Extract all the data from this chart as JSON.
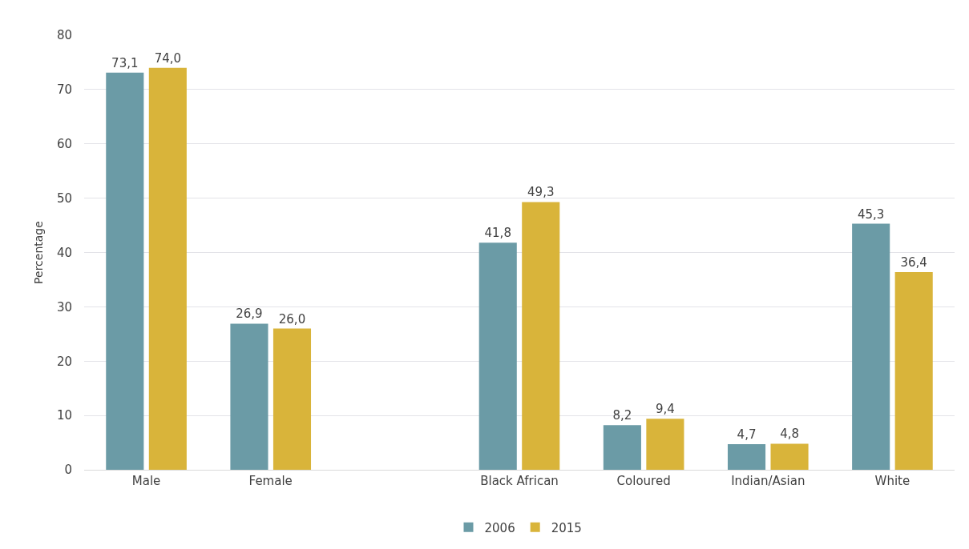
{
  "chart_data": {
    "type": "bar",
    "ylabel": "Percentage",
    "categories": [
      "Male",
      "Female",
      null,
      "Black African",
      "Coloured",
      "Indian/Asian",
      "White"
    ],
    "series": [
      {
        "name": "2006",
        "color": "#6b9ba6",
        "values": [
          73.1,
          26.9,
          null,
          41.8,
          8.2,
          4.7,
          45.3
        ],
        "value_labels": [
          "73,1",
          "26,9",
          null,
          "41,8",
          "8,2",
          "4,7",
          "45,3"
        ]
      },
      {
        "name": "2015",
        "color": "#d9b43a",
        "values": [
          74.0,
          26.0,
          null,
          49.3,
          9.4,
          4.8,
          36.4
        ],
        "value_labels": [
          "74,0",
          "26,0",
          null,
          "49,3",
          "9,4",
          "4,8",
          "36,4"
        ]
      }
    ],
    "ylim": [
      0,
      80
    ],
    "yticks": [
      0,
      10,
      20,
      30,
      40,
      50,
      60,
      70,
      80
    ],
    "grid": "y",
    "legend": "bottom"
  }
}
